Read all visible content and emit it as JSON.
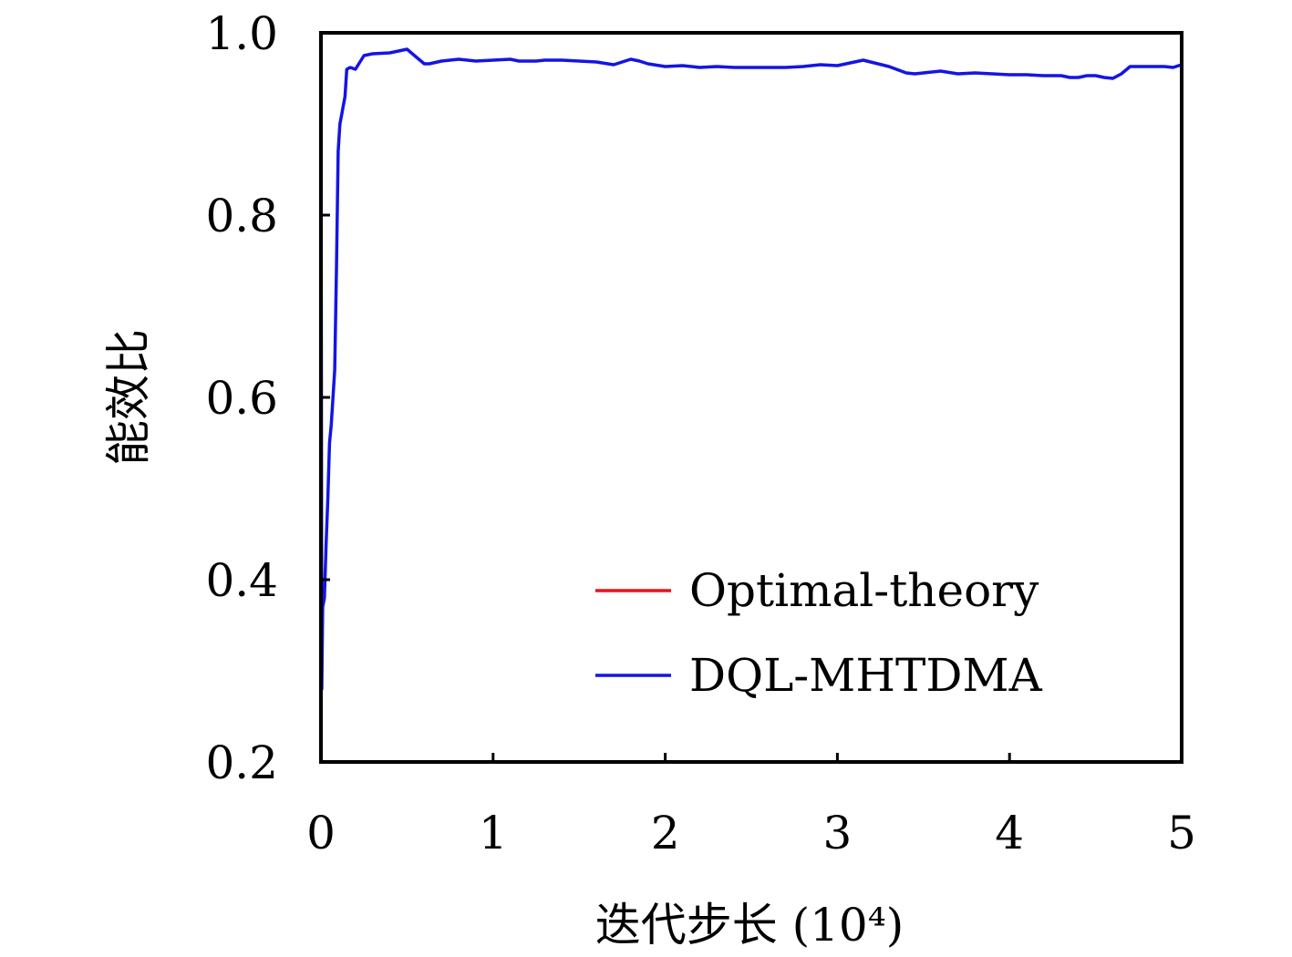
{
  "chart_data": {
    "type": "line",
    "title": "",
    "xlabel": "迭代步长 (10⁴)",
    "ylabel": "能效比",
    "xlim": [
      0,
      5
    ],
    "ylim": [
      0.2,
      1.0
    ],
    "xticks": [
      0,
      1,
      2,
      3,
      4,
      5
    ],
    "xtick_labels": [
      "0",
      "1",
      "2",
      "3",
      "4",
      "5"
    ],
    "yticks": [
      0.2,
      0.4,
      0.6,
      0.8,
      1.0
    ],
    "ytick_labels": [
      "0.2",
      "0.4",
      "0.6",
      "0.8",
      "1.0"
    ],
    "grid": false,
    "legend_position": "lower-right",
    "series": [
      {
        "name": "Optimal-theory",
        "color": "#e8141c",
        "x": [
          0,
          5
        ],
        "y": [
          1.0,
          1.0
        ]
      },
      {
        "name": "DQL-MHTDMA",
        "color": "#1414e6",
        "x": [
          0,
          0.005,
          0.01,
          0.02,
          0.03,
          0.04,
          0.05,
          0.06,
          0.07,
          0.08,
          0.09,
          0.1,
          0.11,
          0.12,
          0.13,
          0.14,
          0.15,
          0.17,
          0.2,
          0.25,
          0.3,
          0.4,
          0.5,
          0.55,
          0.6,
          0.63,
          0.7,
          0.8,
          0.9,
          1.0,
          1.1,
          1.15,
          1.25,
          1.3,
          1.4,
          1.5,
          1.6,
          1.7,
          1.8,
          1.85,
          1.9,
          2.0,
          2.1,
          2.2,
          2.3,
          2.4,
          2.5,
          2.6,
          2.7,
          2.8,
          2.9,
          3.0,
          3.1,
          3.15,
          3.3,
          3.4,
          3.45,
          3.5,
          3.6,
          3.7,
          3.8,
          3.9,
          4.0,
          4.1,
          4.2,
          4.3,
          4.35,
          4.4,
          4.45,
          4.5,
          4.55,
          4.6,
          4.65,
          4.7,
          4.8,
          4.9,
          4.95,
          5.0
        ],
        "y": [
          1.0,
          0.28,
          0.37,
          0.38,
          0.44,
          0.49,
          0.55,
          0.57,
          0.6,
          0.63,
          0.74,
          0.87,
          0.9,
          0.91,
          0.92,
          0.93,
          0.96,
          0.962,
          0.96,
          0.975,
          0.977,
          0.978,
          0.982,
          0.974,
          0.966,
          0.966,
          0.969,
          0.971,
          0.969,
          0.97,
          0.971,
          0.969,
          0.969,
          0.97,
          0.97,
          0.969,
          0.968,
          0.965,
          0.971,
          0.969,
          0.966,
          0.963,
          0.964,
          0.962,
          0.963,
          0.962,
          0.962,
          0.962,
          0.962,
          0.963,
          0.965,
          0.964,
          0.968,
          0.97,
          0.963,
          0.956,
          0.955,
          0.956,
          0.958,
          0.955,
          0.956,
          0.955,
          0.954,
          0.954,
          0.953,
          0.953,
          0.951,
          0.951,
          0.953,
          0.953,
          0.951,
          0.95,
          0.955,
          0.963,
          0.963,
          0.963,
          0.962,
          0.965
        ]
      }
    ]
  }
}
